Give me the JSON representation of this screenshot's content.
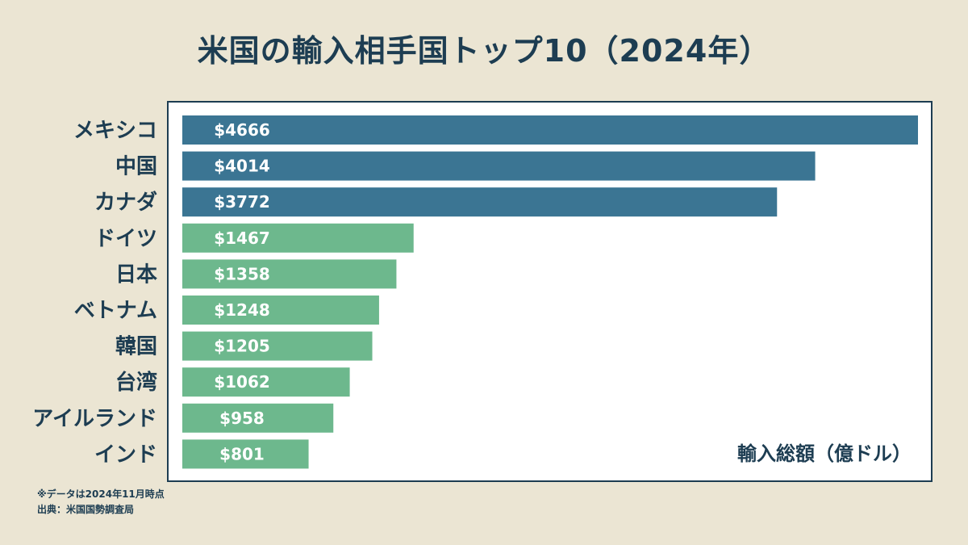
{
  "chart_data": {
    "type": "bar",
    "orientation": "horizontal",
    "title": "米国の輸入相手国トップ10（2024年）",
    "categories": [
      "メキシコ",
      "中国",
      "カナダ",
      "ドイツ",
      "日本",
      "ベトナム",
      "韓国",
      "台湾",
      "アイルランド",
      "インド"
    ],
    "values": [
      4666,
      4014,
      3772,
      1467,
      1358,
      1248,
      1205,
      1062,
      958,
      801
    ],
    "value_labels": [
      "$4666",
      "$4014",
      "$3772",
      "$1467",
      "$1358",
      "$1248",
      "$1205",
      "$1062",
      "$958",
      "$801"
    ],
    "unit_label": "輸入総額（億ドル）",
    "xlim": [
      0,
      4666
    ],
    "colors": {
      "top3": "#3b7593",
      "others": "#6db88d",
      "background": "#ebe5d3",
      "plot_background": "#ffffff",
      "text": "#1d3d52"
    }
  },
  "footnote": {
    "note": "※データは2024年11月時点",
    "source": "出典：米国国勢調査局"
  }
}
